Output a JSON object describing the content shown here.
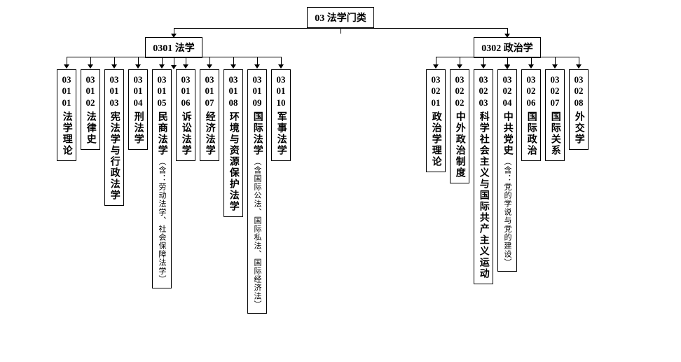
{
  "type": "tree",
  "colors": {
    "border": "#000000",
    "background": "#ffffff",
    "text": "#000000"
  },
  "font": {
    "family": "SimSun",
    "weight": "bold",
    "leaf_code_size": 13,
    "leaf_label_size": 14,
    "sub_size": 11
  },
  "root": {
    "code": "03",
    "label": "法学门类"
  },
  "branches": [
    {
      "code": "0301",
      "label": "法学",
      "children": [
        {
          "code": "030101",
          "label": "法学理论",
          "sub": ""
        },
        {
          "code": "030102",
          "label": "法律史",
          "sub": ""
        },
        {
          "code": "030103",
          "label": "宪法学与行政法学",
          "sub": ""
        },
        {
          "code": "030104",
          "label": "刑法学",
          "sub": ""
        },
        {
          "code": "030105",
          "label": "民商法学",
          "sub": "（含：劳动法学、社会保障法学）"
        },
        {
          "code": "030106",
          "label": "诉讼法学",
          "sub": ""
        },
        {
          "code": "030107",
          "label": "经济法学",
          "sub": ""
        },
        {
          "code": "030108",
          "label": "环境与资源保护法学",
          "sub": ""
        },
        {
          "code": "030109",
          "label": "国际法学",
          "sub": "（含国际公法、国际私法、国际经济法）"
        },
        {
          "code": "030110",
          "label": "军事法学",
          "sub": ""
        }
      ]
    },
    {
      "code": "0302",
      "label": "政治学",
      "children": [
        {
          "code": "030201",
          "label": "政治学理论",
          "sub": ""
        },
        {
          "code": "030202",
          "label": "中外政治制度",
          "sub": ""
        },
        {
          "code": "030203",
          "label": "科学社会主义与国际共产主义运动",
          "sub": "",
          "wide": true
        },
        {
          "code": "030204",
          "label": "中共党史",
          "sub": "（含：党的学说与党的建设）"
        },
        {
          "code": "030206",
          "label": "国际政治",
          "sub": ""
        },
        {
          "code": "030207",
          "label": "国际关系",
          "sub": ""
        },
        {
          "code": "030208",
          "label": "外交学",
          "sub": ""
        }
      ]
    }
  ]
}
